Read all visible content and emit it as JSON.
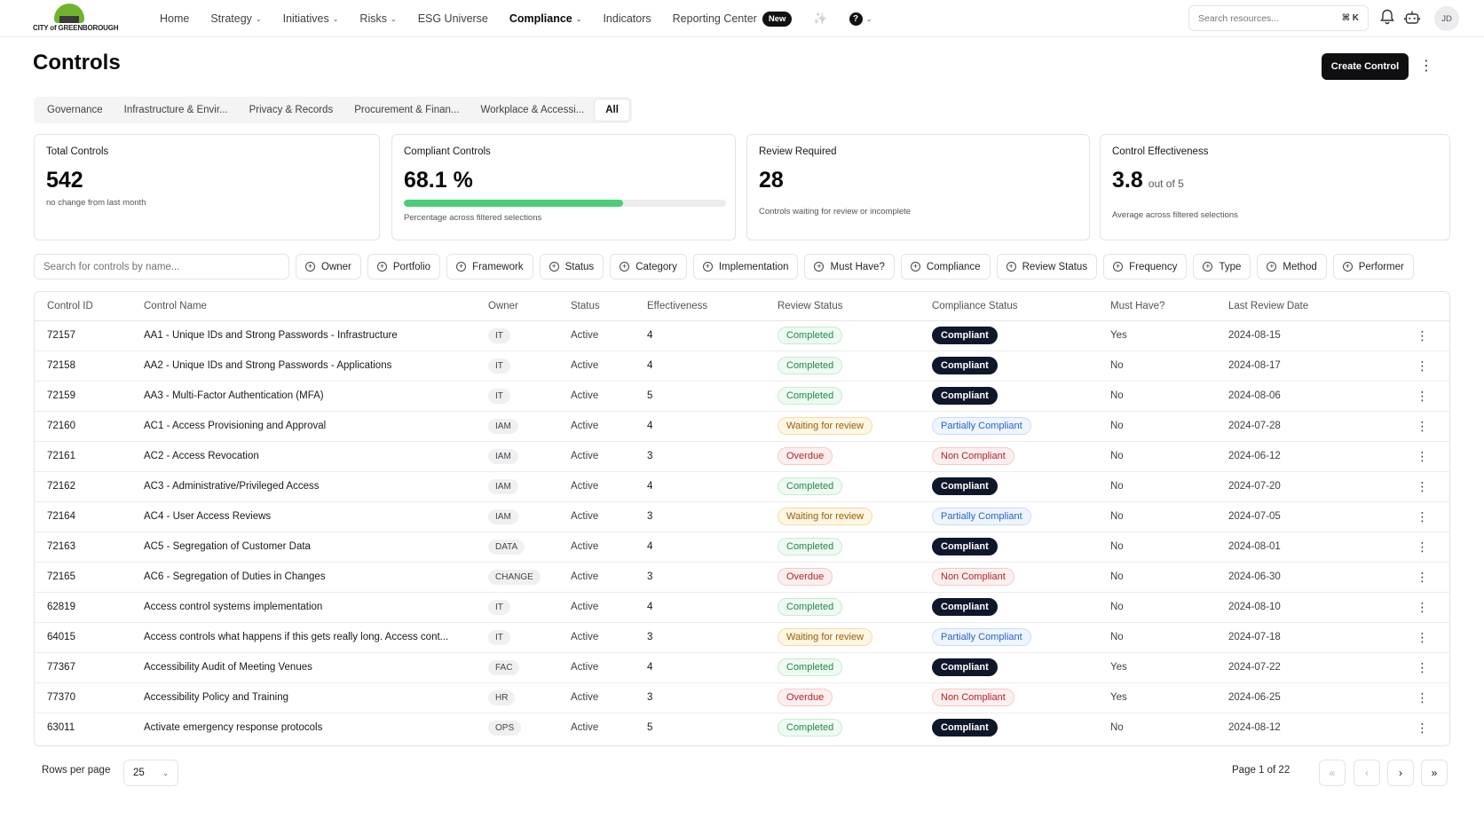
{
  "app": {
    "logo_text": "CITY of GREENBOROUGH"
  },
  "nav": {
    "items": [
      {
        "label": "Home",
        "dropdown": false,
        "active": false
      },
      {
        "label": "Strategy",
        "dropdown": true,
        "active": false
      },
      {
        "label": "Initiatives",
        "dropdown": true,
        "active": false
      },
      {
        "label": "Risks",
        "dropdown": true,
        "active": false
      },
      {
        "label": "ESG Universe",
        "dropdown": false,
        "active": false
      },
      {
        "label": "Compliance",
        "dropdown": true,
        "active": true
      },
      {
        "label": "Indicators",
        "dropdown": false,
        "active": false
      },
      {
        "label": "Reporting Center",
        "dropdown": false,
        "active": false,
        "badge": "New"
      }
    ],
    "search_placeholder": "Search resources...",
    "search_shortcut": "⌘ K",
    "avatar_initials": "JD"
  },
  "page": {
    "title": "Controls",
    "create_button": "Create Control"
  },
  "tabs": [
    {
      "label": "Governance",
      "active": false
    },
    {
      "label": "Infrastructure & Envir...",
      "active": false
    },
    {
      "label": "Privacy & Records",
      "active": false
    },
    {
      "label": "Procurement & Finan...",
      "active": false
    },
    {
      "label": "Workplace & Accessi...",
      "active": false
    },
    {
      "label": "All",
      "active": true
    }
  ],
  "stats": {
    "total": {
      "label": "Total Controls",
      "value": "542",
      "note": "no change from last month"
    },
    "compliant": {
      "label": "Compliant Controls",
      "value": "68.1 %",
      "progress": 0.681,
      "note": "Percentage across filtered selections"
    },
    "review": {
      "label": "Review Required",
      "value": "28",
      "note": "Controls waiting for review or incomplete"
    },
    "effectiveness": {
      "label": "Control Effectiveness",
      "value": "3.8",
      "suffix": "out of 5",
      "note": "Average across filtered selections"
    }
  },
  "filters": {
    "search_placeholder": "Search for controls by name...",
    "buttons": [
      "Owner",
      "Portfolio",
      "Framework",
      "Status",
      "Category",
      "Implementation",
      "Must Have?",
      "Compliance",
      "Review Status",
      "Frequency",
      "Type",
      "Method",
      "Performer"
    ]
  },
  "table": {
    "columns": [
      "Control ID",
      "Control Name",
      "Owner",
      "Status",
      "Effectiveness",
      "Review Status",
      "Compliance Status",
      "Must Have?",
      "Last Review Date"
    ],
    "rows": [
      {
        "id": "72157",
        "name": "AA1 - Unique IDs and Strong Passwords - Infrastructure",
        "owner": "IT",
        "status": "Active",
        "effectiveness": "4",
        "review": "Completed",
        "compliance": "Compliant",
        "must": "Yes",
        "date": "2024-08-15"
      },
      {
        "id": "72158",
        "name": "AA2 - Unique IDs and Strong Passwords - Applications",
        "owner": "IT",
        "status": "Active",
        "effectiveness": "4",
        "review": "Completed",
        "compliance": "Compliant",
        "must": "No",
        "date": "2024-08-17"
      },
      {
        "id": "72159",
        "name": "AA3 - Multi-Factor Authentication (MFA)",
        "owner": "IT",
        "status": "Active",
        "effectiveness": "5",
        "review": "Completed",
        "compliance": "Compliant",
        "must": "No",
        "date": "2024-08-06"
      },
      {
        "id": "72160",
        "name": "AC1 - Access Provisioning and Approval",
        "owner": "IAM",
        "status": "Active",
        "effectiveness": "4",
        "review": "Waiting for review",
        "compliance": "Partially Compliant",
        "must": "No",
        "date": "2024-07-28"
      },
      {
        "id": "72161",
        "name": "AC2 - Access Revocation",
        "owner": "IAM",
        "status": "Active",
        "effectiveness": "3",
        "review": "Overdue",
        "compliance": "Non Compliant",
        "must": "No",
        "date": "2024-06-12"
      },
      {
        "id": "72162",
        "name": "AC3 - Administrative/Privileged Access",
        "owner": "IAM",
        "status": "Active",
        "effectiveness": "4",
        "review": "Completed",
        "compliance": "Compliant",
        "must": "No",
        "date": "2024-07-20"
      },
      {
        "id": "72164",
        "name": "AC4 - User Access Reviews",
        "owner": "IAM",
        "status": "Active",
        "effectiveness": "3",
        "review": "Waiting for review",
        "compliance": "Partially Compliant",
        "must": "No",
        "date": "2024-07-05"
      },
      {
        "id": "72163",
        "name": "AC5 - Segregation of Customer Data",
        "owner": "DATA",
        "status": "Active",
        "effectiveness": "4",
        "review": "Completed",
        "compliance": "Compliant",
        "must": "No",
        "date": "2024-08-01"
      },
      {
        "id": "72165",
        "name": "AC6 - Segregation of Duties in Changes",
        "owner": "CHANGE",
        "status": "Active",
        "effectiveness": "3",
        "review": "Overdue",
        "compliance": "Non Compliant",
        "must": "No",
        "date": "2024-06-30"
      },
      {
        "id": "62819",
        "name": "Access control systems implementation",
        "owner": "IT",
        "status": "Active",
        "effectiveness": "4",
        "review": "Completed",
        "compliance": "Compliant",
        "must": "No",
        "date": "2024-08-10"
      },
      {
        "id": "64015",
        "name": "Access controls what happens if this gets really long. Access cont...",
        "owner": "IT",
        "status": "Active",
        "effectiveness": "3",
        "review": "Waiting for review",
        "compliance": "Partially Compliant",
        "must": "No",
        "date": "2024-07-18"
      },
      {
        "id": "77367",
        "name": "Accessibility Audit of Meeting Venues",
        "owner": "FAC",
        "status": "Active",
        "effectiveness": "4",
        "review": "Completed",
        "compliance": "Compliant",
        "must": "Yes",
        "date": "2024-07-22"
      },
      {
        "id": "77370",
        "name": "Accessibility Policy and Training",
        "owner": "HR",
        "status": "Active",
        "effectiveness": "3",
        "review": "Overdue",
        "compliance": "Non Compliant",
        "must": "Yes",
        "date": "2024-06-25"
      },
      {
        "id": "63011",
        "name": "Activate emergency response protocols",
        "owner": "OPS",
        "status": "Active",
        "effectiveness": "5",
        "review": "Completed",
        "compliance": "Compliant",
        "must": "No",
        "date": "2024-08-12"
      }
    ]
  },
  "pagination": {
    "rows_per_page_label": "Rows per page",
    "rows_per_page": "25",
    "page_info": "Page 1 of 22"
  },
  "colors": {
    "accent_dark": "#0f0f12",
    "progress_green": "#4ccd78",
    "logo_green": "#6fb52c"
  }
}
